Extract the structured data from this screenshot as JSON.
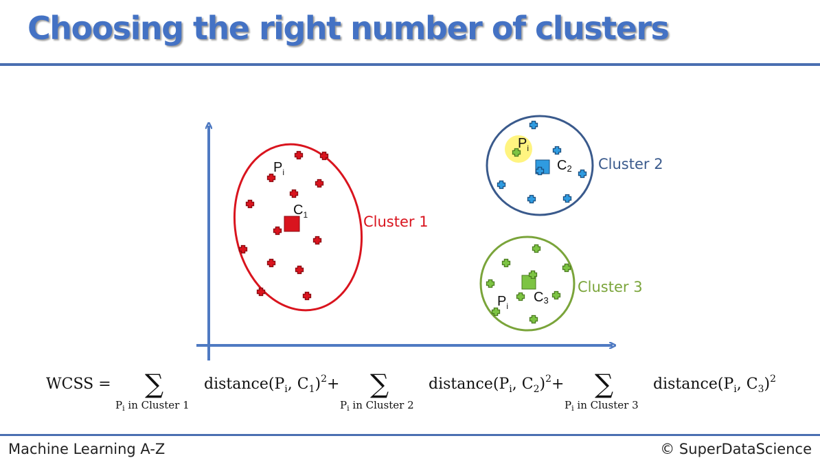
{
  "title": "Choosing the right number of clusters",
  "clusters": [
    {
      "label": "Cluster 1",
      "color": "#d9141e",
      "centroid": "C",
      "centroid_sub": "1",
      "point_label": "P",
      "point_sub": "i"
    },
    {
      "label": "Cluster 2",
      "color": "#3a5a8c",
      "point_color": "#2f9be0",
      "centroid": "C",
      "centroid_sub": "2",
      "point_label": "P",
      "point_sub": "i"
    },
    {
      "label": "Cluster 3",
      "color": "#7aa43a",
      "point_color": "#7dc443",
      "centroid": "C",
      "centroid_sub": "3",
      "point_label": "P",
      "point_sub": "i"
    }
  ],
  "formula": {
    "lhs": "WCSS =",
    "sigma": "∑",
    "terms": [
      {
        "under": "P",
        "under_sub": "i",
        "under_text": " in Cluster 1",
        "expr": "distance(P",
        "expr_sub": "i",
        "expr_mid": ", C",
        "expr_csub": "1",
        "expr_end": ")",
        "sup": "2",
        "plus": "+"
      },
      {
        "under": "P",
        "under_sub": "i",
        "under_text": " in Cluster 2",
        "expr": "distance(P",
        "expr_sub": "i",
        "expr_mid": ", C",
        "expr_csub": "2",
        "expr_end": ")",
        "sup": "2",
        "plus": "+"
      },
      {
        "under": "P",
        "under_sub": "i",
        "under_text": " in Cluster 3",
        "expr": "distance(P",
        "expr_sub": "i",
        "expr_mid": ", C",
        "expr_csub": "3",
        "expr_end": ")",
        "sup": "2",
        "plus": ""
      }
    ]
  },
  "footer": {
    "left": "Machine Learning A-Z",
    "right": "© SuperDataScience"
  },
  "colors": {
    "accent": "#4472c4",
    "axis": "#4f7ac2"
  }
}
